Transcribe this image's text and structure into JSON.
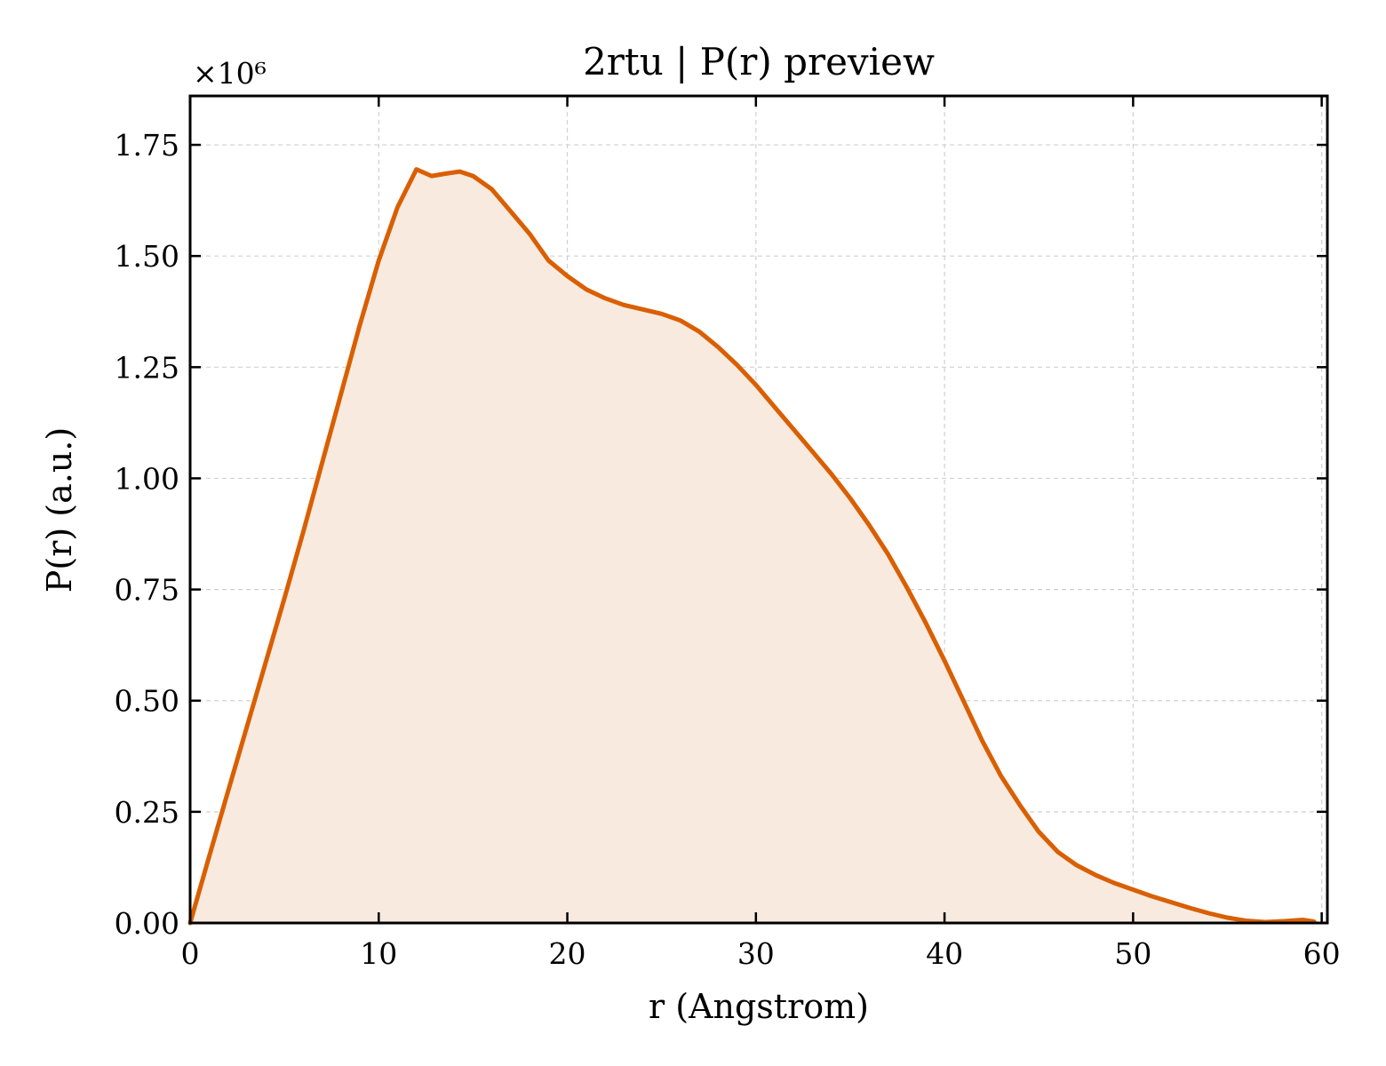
{
  "chart_data": {
    "type": "area",
    "title": "2rtu | P(r) preview",
    "xlabel": "r (Angstrom)",
    "ylabel": "P(r) (a.u.)",
    "y_multiplier_label": "×10⁶",
    "xlim": [
      0,
      60.3
    ],
    "ylim": [
      0,
      1.86
    ],
    "x_ticks": [
      0,
      10,
      20,
      30,
      40,
      50,
      60
    ],
    "x_tick_labels": [
      "0",
      "10",
      "20",
      "30",
      "40",
      "50",
      "60"
    ],
    "y_ticks": [
      0,
      0.25,
      0.5,
      0.75,
      1.0,
      1.25,
      1.5,
      1.75
    ],
    "y_tick_labels": [
      "0.00",
      "0.25",
      "0.50",
      "0.75",
      "1.00",
      "1.25",
      "1.50",
      "1.75"
    ],
    "grid": true,
    "line_color": "#d95f02",
    "fill_color": "#f8eadf",
    "series": [
      {
        "x": [
          0,
          1,
          2,
          3,
          4,
          5,
          6,
          7,
          8,
          9,
          10,
          11,
          12,
          12.8,
          13.5,
          14.3,
          15,
          16,
          17,
          18,
          19,
          20,
          21,
          22,
          23,
          24,
          25,
          26,
          27,
          28,
          29,
          30,
          31,
          32,
          33,
          34,
          35,
          36,
          37,
          38,
          39,
          40,
          41,
          42,
          43,
          44,
          45,
          46,
          47,
          48,
          49,
          50,
          51,
          52,
          53,
          54,
          55,
          56,
          57,
          58,
          59,
          59.6
        ],
        "y": [
          0,
          0.148,
          0.295,
          0.44,
          0.585,
          0.73,
          0.88,
          1.035,
          1.19,
          1.345,
          1.49,
          1.61,
          1.695,
          1.68,
          1.685,
          1.69,
          1.68,
          1.65,
          1.6,
          1.55,
          1.49,
          1.455,
          1.425,
          1.405,
          1.39,
          1.38,
          1.37,
          1.355,
          1.33,
          1.295,
          1.255,
          1.21,
          1.16,
          1.11,
          1.06,
          1.01,
          0.955,
          0.895,
          0.83,
          0.755,
          0.675,
          0.59,
          0.5,
          0.41,
          0.33,
          0.265,
          0.205,
          0.16,
          0.13,
          0.108,
          0.09,
          0.075,
          0.06,
          0.047,
          0.034,
          0.022,
          0.012,
          0.005,
          0.002,
          0.004,
          0.007,
          0.003
        ]
      }
    ]
  }
}
